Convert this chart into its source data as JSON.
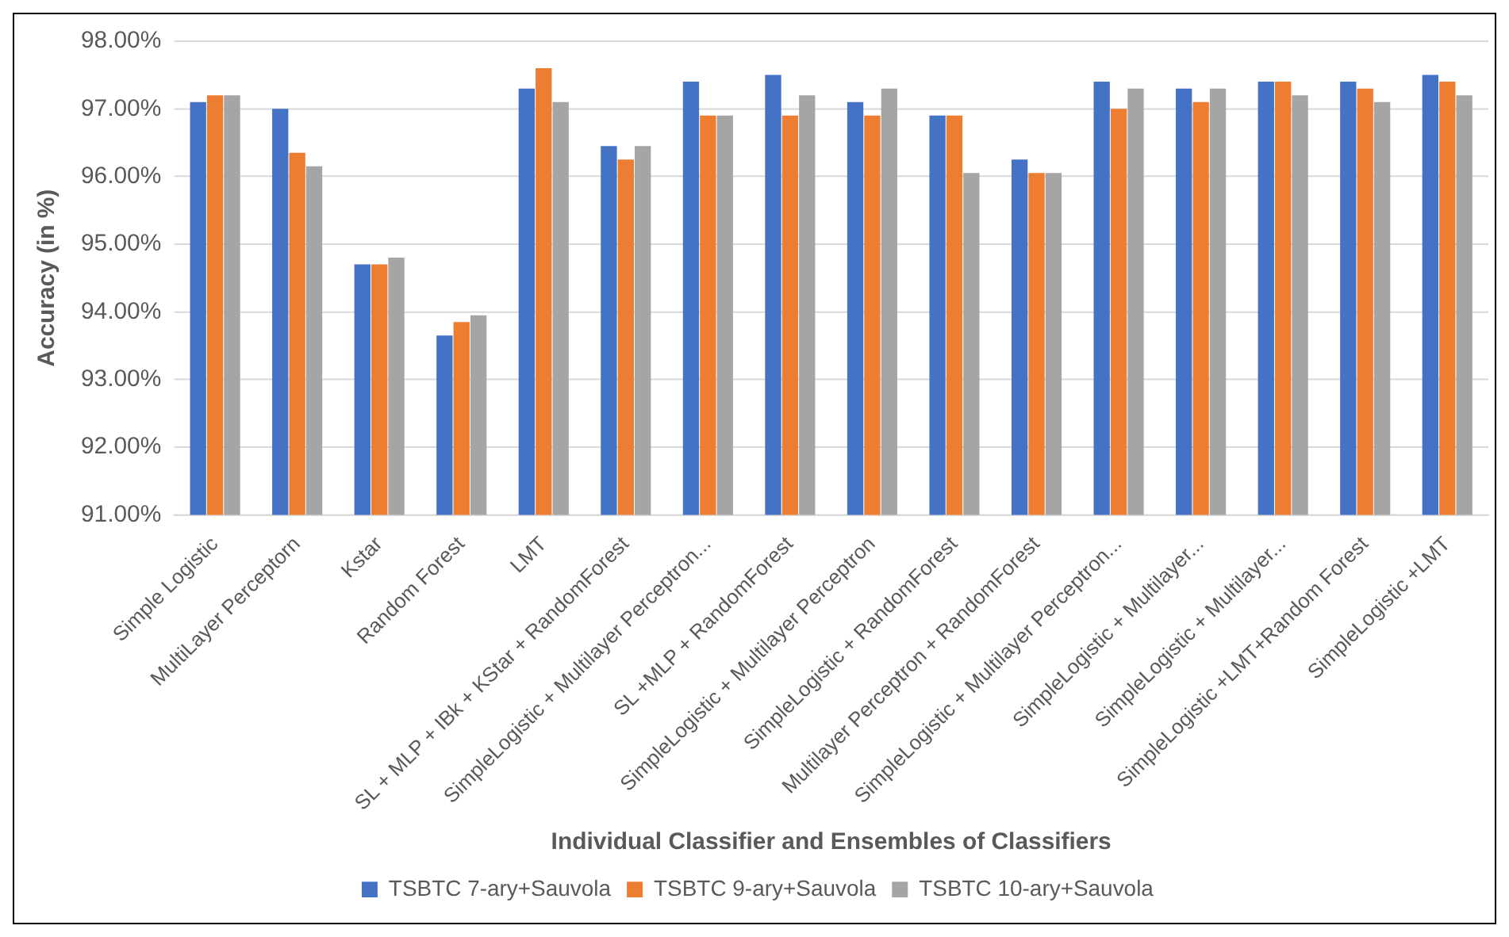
{
  "chart_data": {
    "type": "bar",
    "xlabel": "Individual Classifier and Ensembles of Classifiers",
    "ylabel": "Accuracy (in %)",
    "categories": [
      "Simple Logistic",
      "MultiLayer Perceptorn",
      "Kstar",
      "Random Forest",
      "LMT",
      "SL + MLP + IBk + KStar + RandomForest",
      "SimpleLogistic + Multilayer Perceptron...",
      "SL +MLP + RandomForest",
      "SimpleLogistic + Multilayer Perceptron",
      "SimpleLogistic + RandomForest",
      "Multilayer Perceptron + RandomForest",
      "SimpleLogistic + Multilayer Perceptron...",
      "SimpleLogistic + Multilayer...",
      "SimpleLogistic + Multilayer...",
      "SimpleLogistic +LMT+Random Forest",
      "SimpleLogistic +LMT"
    ],
    "series": [
      {
        "name": "TSBTC 7-ary+Sauvola",
        "color": "#4472c4",
        "values": [
          97.1,
          97.0,
          94.7,
          93.65,
          97.3,
          96.45,
          97.4,
          97.5,
          97.1,
          96.9,
          96.25,
          97.4,
          97.3,
          97.4,
          97.4,
          97.5
        ]
      },
      {
        "name": "TSBTC 9-ary+Sauvola",
        "color": "#ed7d31",
        "values": [
          97.2,
          96.35,
          94.7,
          93.85,
          97.6,
          96.25,
          96.9,
          96.9,
          96.9,
          96.9,
          96.05,
          97.0,
          97.1,
          97.4,
          97.3,
          97.4
        ]
      },
      {
        "name": "TSBTC 10-ary+Sauvola",
        "color": "#a5a5a5",
        "values": [
          97.2,
          96.15,
          94.8,
          93.95,
          97.1,
          96.45,
          96.9,
          97.2,
          97.3,
          96.05,
          96.05,
          97.3,
          97.3,
          97.2,
          97.1,
          97.2
        ]
      }
    ],
    "ylim": [
      91,
      98
    ],
    "yticks": [
      {
        "value": 91,
        "label": "91.00%"
      },
      {
        "value": 92,
        "label": "92.00%"
      },
      {
        "value": 93,
        "label": "93.00%"
      },
      {
        "value": 94,
        "label": "94.00%"
      },
      {
        "value": 95,
        "label": "95.00%"
      },
      {
        "value": 96,
        "label": "96.00%"
      },
      {
        "value": 97,
        "label": "97.00%"
      },
      {
        "value": 98,
        "label": "98.00%"
      }
    ],
    "grid": "y",
    "legend": "bottom"
  }
}
